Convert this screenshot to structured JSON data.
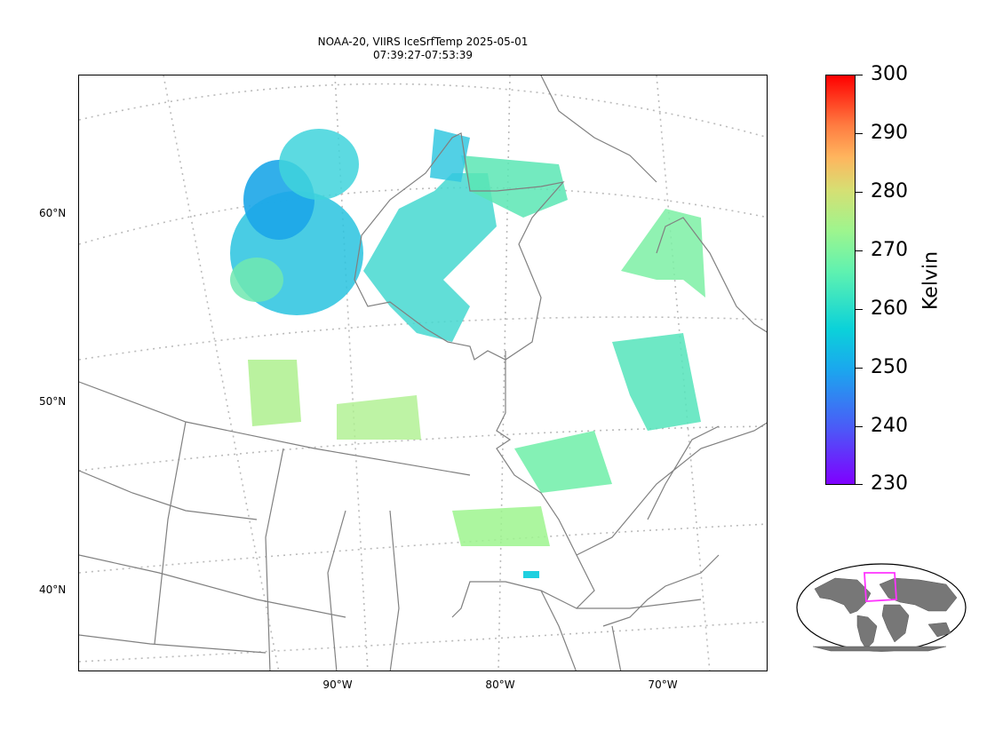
{
  "title": {
    "line1": "NOAA-20, VIIRS IceSrfTemp 2025-05-01",
    "line2": "07:39:27-07:53:39"
  },
  "lat_labels": [
    "60°N",
    "50°N",
    "40°N"
  ],
  "lon_labels": [
    "90°W",
    "80°W",
    "70°W"
  ],
  "colorbar": {
    "label": "Kelvin",
    "ticks": [
      "300",
      "290",
      "280",
      "270",
      "260",
      "250",
      "240",
      "230"
    ],
    "range": [
      230,
      300
    ],
    "colormap": "rainbow"
  },
  "colors": {
    "coastline": "#808080",
    "gridline": "#bbbbbb",
    "inset_land": "#777777",
    "inset_box": "#ff33ff"
  }
}
